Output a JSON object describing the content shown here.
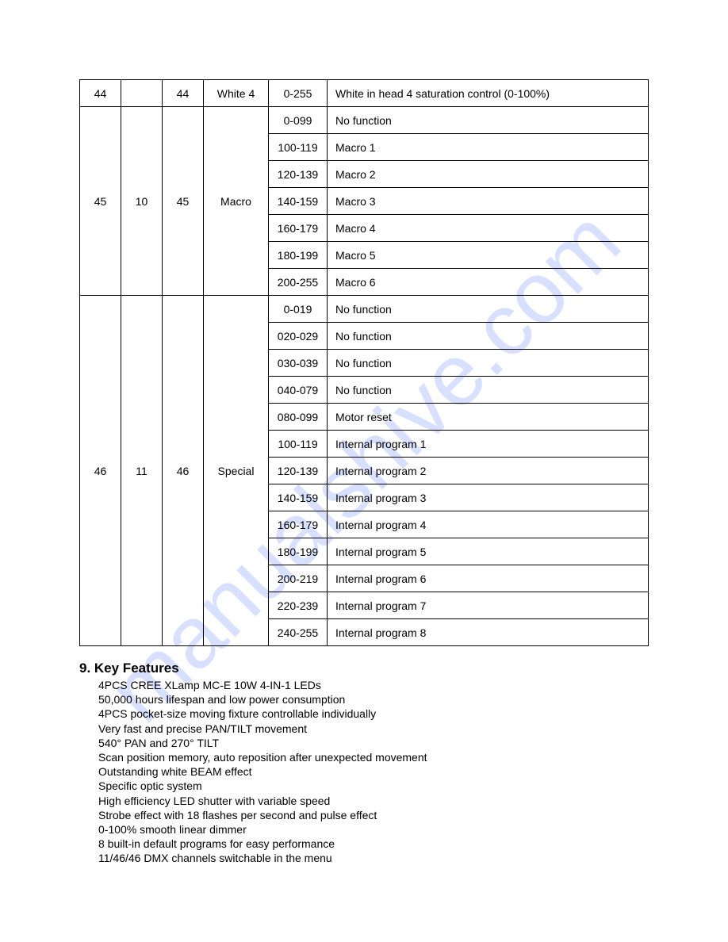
{
  "watermark": "manualshive.com",
  "table": {
    "rows": [
      {
        "c1": "44",
        "c2": "",
        "c3": "44",
        "c4": "White 4",
        "c5": "0-255",
        "c6": "White in head 4 saturation control (0-100%)"
      },
      {
        "c1": "45",
        "c2": "10",
        "c3": "45",
        "c4": "Macro",
        "rowspan": 7,
        "sub": [
          {
            "c5": "0-099",
            "c6": "No function"
          },
          {
            "c5": "100-119",
            "c6": "Macro 1"
          },
          {
            "c5": "120-139",
            "c6": "Macro 2"
          },
          {
            "c5": "140-159",
            "c6": "Macro 3"
          },
          {
            "c5": "160-179",
            "c6": "Macro 4"
          },
          {
            "c5": "180-199",
            "c6": "Macro 5"
          },
          {
            "c5": "200-255",
            "c6": "Macro 6"
          }
        ]
      },
      {
        "c1": "46",
        "c2": "11",
        "c3": "46",
        "c4": "Special",
        "rowspan": 13,
        "sub": [
          {
            "c5": "0-019",
            "c6": "No function"
          },
          {
            "c5": "020-029",
            "c6": "No function"
          },
          {
            "c5": "030-039",
            "c6": "No function"
          },
          {
            "c5": "040-079",
            "c6": "No function"
          },
          {
            "c5": "080-099",
            "c6": "Motor reset"
          },
          {
            "c5": "100-119",
            "c6": "Internal program 1"
          },
          {
            "c5": "120-139",
            "c6": "Internal program 2"
          },
          {
            "c5": "140-159",
            "c6": "Internal program 3"
          },
          {
            "c5": "160-179",
            "c6": "Internal program 4"
          },
          {
            "c5": "180-199",
            "c6": "Internal program 5"
          },
          {
            "c5": "200-219",
            "c6": "Internal program 6"
          },
          {
            "c5": "220-239",
            "c6": "Internal program 7"
          },
          {
            "c5": "240-255",
            "c6": "Internal program 8"
          }
        ]
      }
    ]
  },
  "features": {
    "title": "9. Key Features",
    "items": [
      "4PCS CREE XLamp MC-E 10W 4-IN-1 LEDs",
      "50,000 hours lifespan and low power consumption",
      "4PCS pocket-size moving fixture controllable individually",
      "Very fast and precise PAN/TILT movement",
      "540°   PAN and 270°   TILT",
      "Scan position memory, auto reposition after unexpected movement",
      "Outstanding white BEAM effect",
      "Specific optic system",
      "High efficiency LED shutter with variable speed",
      "Strobe effect with 18 flashes per second and pulse effect",
      "0-100% smooth linear dimmer",
      "8 built-in default programs for easy performance",
      "11/46/46 DMX channels switchable in the menu"
    ]
  }
}
